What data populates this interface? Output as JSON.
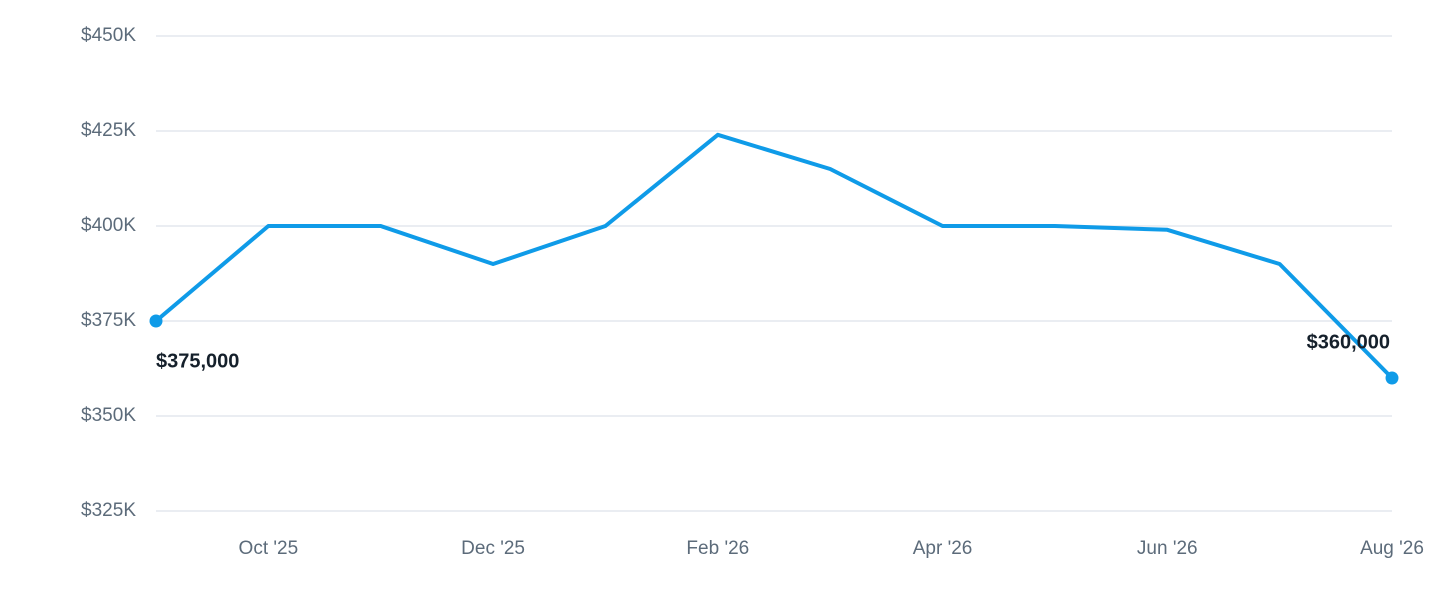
{
  "chart_data": {
    "type": "line",
    "categories": [
      null,
      "Oct '25",
      null,
      "Dec '25",
      null,
      "Feb '26",
      null,
      "Apr '26",
      null,
      "Jun '26",
      null,
      "Aug '26"
    ],
    "values": [
      375000,
      400000,
      400000,
      390000,
      400000,
      424000,
      415000,
      400000,
      400000,
      399000,
      390000,
      360000
    ],
    "value_labels": [
      "$375,000",
      null,
      null,
      null,
      null,
      null,
      null,
      null,
      null,
      null,
      null,
      "$360,000"
    ],
    "color": "#0f9be8",
    "ylim": [
      325000,
      450000
    ],
    "yticks": [
      {
        "value": 325000,
        "label": "$325K"
      },
      {
        "value": 350000,
        "label": "$350K"
      },
      {
        "value": 375000,
        "label": "$375K"
      },
      {
        "value": 400000,
        "label": "$400K"
      },
      {
        "value": 425000,
        "label": "$425K"
      },
      {
        "value": 450000,
        "label": "$450K"
      }
    ],
    "grid": true
  }
}
